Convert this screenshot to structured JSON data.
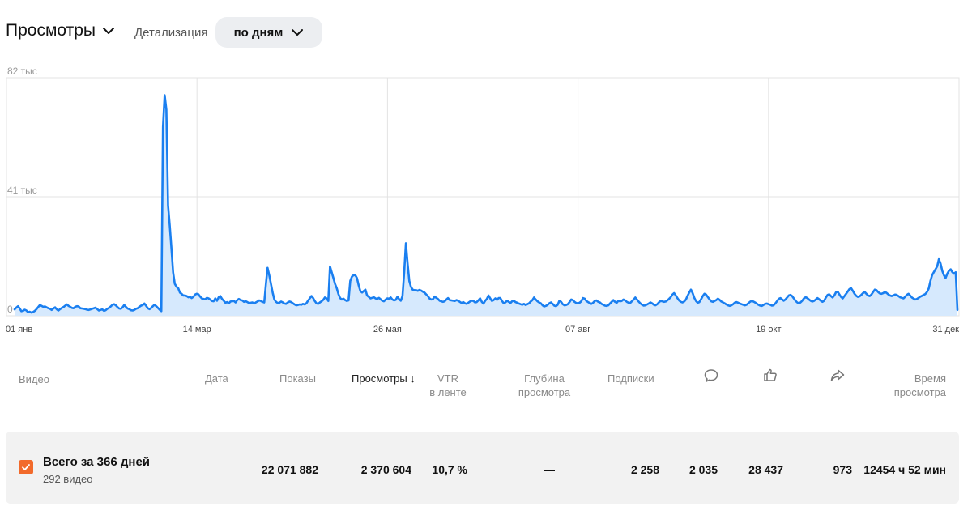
{
  "toolbar": {
    "metric_label": "Просмотры",
    "detail_label": "Детализация",
    "detail_value": "по дням"
  },
  "chart_data": {
    "type": "area",
    "title": "",
    "xlabel": "",
    "ylabel": "",
    "ylim": [
      0,
      82000
    ],
    "y_ticks": [
      "0",
      "41 тыс",
      "82 тыс"
    ],
    "x_ticks": [
      "01 янв",
      "14 мар",
      "26 мая",
      "07 авг",
      "19 окт",
      "31 дек"
    ],
    "grid": true,
    "color": "#1a7ff0",
    "fill": "#d6e9fd",
    "series": [
      {
        "values": [
          2200,
          2800,
          3300,
          2600,
          1600,
          1700,
          2100,
          1800,
          1200,
          1400,
          1100,
          1300,
          1700,
          2300,
          3000,
          3700,
          3400,
          3100,
          3200,
          2900,
          2600,
          2400,
          2000,
          2500,
          2900,
          2200,
          1800,
          2300,
          2700,
          3000,
          3500,
          3900,
          3400,
          3100,
          2700,
          2600,
          3100,
          3300,
          3200,
          2600,
          2500,
          2400,
          2300,
          2100,
          2000,
          2200,
          2400,
          2600,
          2800,
          2300,
          1800,
          2000,
          2200,
          1700,
          1900,
          2400,
          2700,
          3200,
          3800,
          4000,
          3600,
          3000,
          2500,
          2400,
          2900,
          3700,
          3100,
          2500,
          2300,
          1900,
          1800,
          2000,
          2400,
          2600,
          3100,
          3500,
          3700,
          4200,
          3400,
          2600,
          2300,
          2700,
          3300,
          3800,
          3300,
          2700,
          2100,
          1600,
          65000,
          76000,
          71000,
          38000,
          31000,
          23000,
          15000,
          11000,
          10000,
          9500,
          8000,
          7600,
          7000,
          7000,
          6800,
          6400,
          6600,
          6100,
          6500,
          7300,
          7600,
          7400,
          6600,
          6000,
          5800,
          5700,
          6200,
          6000,
          5600,
          5100,
          5000,
          6000,
          5200,
          6400,
          6800,
          5800,
          5200,
          4500,
          4700,
          4300,
          4900,
          5000,
          5100,
          4600,
          5400,
          5800,
          5400,
          5300,
          4800,
          5000,
          4700,
          4400,
          4500,
          4600,
          4200,
          4600,
          4900,
          5300,
          5100,
          4800,
          4600,
          11000,
          16500,
          14000,
          11000,
          8000,
          5600,
          4800,
          4400,
          4500,
          4900,
          4600,
          4200,
          4100,
          4600,
          4900,
          4700,
          4300,
          3900,
          3600,
          3700,
          3900,
          3800,
          4100,
          3900,
          4300,
          5200,
          6000,
          6800,
          6100,
          5100,
          4300,
          4100,
          4600,
          5000,
          5500,
          6300,
          6000,
          5100,
          17000,
          15000,
          13000,
          11000,
          9500,
          7500,
          6100,
          5600,
          5900,
          5400,
          5100,
          5300,
          12000,
          13500,
          14000,
          14000,
          13000,
          10500,
          8500,
          8000,
          8500,
          9000,
          7000,
          6500,
          6000,
          6200,
          6400,
          6000,
          5800,
          6200,
          5700,
          5200,
          5000,
          5600,
          6000,
          5900,
          6300,
          5600,
          5300,
          5500,
          6600,
          5700,
          5200,
          6800,
          15000,
          25000,
          18000,
          12000,
          10000,
          9000,
          8800,
          8800,
          8600,
          8900,
          8700,
          8300,
          8000,
          7400,
          6800,
          6000,
          5600,
          5700,
          6600,
          6200,
          5800,
          5200,
          5000,
          4800,
          5000,
          5600,
          6100,
          5400,
          5300,
          5200,
          5100,
          5400,
          5200,
          4800,
          4400,
          4700,
          4300,
          4100,
          4500,
          4900,
          5200,
          5100,
          4600,
          4700,
          5300,
          6000,
          4800,
          4200,
          5200,
          5800,
          7000,
          6000,
          5100,
          5400,
          6000,
          5500,
          6100,
          6100,
          5100,
          4300,
          4600,
          5200,
          4800,
          4400,
          5000,
          5200,
          4700,
          4500,
          4200,
          4000,
          3800,
          4100,
          3700,
          4000,
          4300,
          4900,
          5400,
          6300,
          5600,
          5000,
          4600,
          4300,
          3600,
          3200,
          3400,
          3700,
          4300,
          4600,
          4100,
          3500,
          3300,
          3800,
          5200,
          4800,
          4000,
          3600,
          3700,
          4000,
          4700,
          5600,
          5400,
          4800,
          4400,
          4300,
          4500,
          5000,
          6100,
          5900,
          5100,
          4700,
          4400,
          4100,
          4500,
          5100,
          5300,
          4800,
          4600,
          4100,
          3800,
          3500,
          3400,
          3600,
          4200,
          4800,
          5400,
          4800,
          4500,
          5200,
          5000,
          5100,
          5600,
          5300,
          4800,
          4500,
          4400,
          5000,
          5600,
          6300,
          5600,
          4900,
          4300,
          3800,
          3500,
          3600,
          3900,
          4200,
          4600,
          4300,
          3800,
          3600,
          4000,
          4600,
          5100,
          5000,
          4800,
          4900,
          5300,
          5800,
          6400,
          7300,
          7800,
          7000,
          6100,
          5300,
          4800,
          4600,
          4900,
          5600,
          6900,
          8000,
          9000,
          7800,
          6200,
          5100,
          4500,
          4700,
          5700,
          6800,
          7600,
          7300,
          6500,
          5700,
          5000,
          4800,
          5100,
          5400,
          5900,
          5500,
          4900,
          4600,
          4300,
          3900,
          3600,
          3400,
          3600,
          4000,
          4500,
          4700,
          4500,
          4200,
          4000,
          3800,
          3600,
          3800,
          4300,
          4800,
          5100,
          4900,
          4600,
          4200,
          3800,
          3500,
          3400,
          3700,
          4100,
          4200,
          4000,
          3800,
          3500,
          3600,
          4200,
          5000,
          5800,
          6100,
          5700,
          5200,
          5600,
          6300,
          7000,
          7200,
          6800,
          6000,
          5200,
          4600,
          4300,
          4600,
          5200,
          6000,
          6400,
          6100,
          5600,
          5200,
          4900,
          5100,
          5600,
          6100,
          5700,
          5200,
          4800,
          5200,
          6300,
          7200,
          7400,
          6800,
          6300,
          7000,
          8100,
          8300,
          7400,
          6500,
          6000,
          6800,
          7600,
          8400,
          9200,
          9500,
          8600,
          7600,
          6900,
          6500,
          6700,
          7200,
          7800,
          8200,
          7600,
          7000,
          6800,
          7300,
          8200,
          9000,
          8800,
          8200,
          7700,
          7600,
          7800,
          8200,
          7900,
          7400,
          7000,
          6800,
          7000,
          7300,
          7200,
          6800,
          6400,
          6200,
          6000,
          6500,
          7200,
          7600,
          7000,
          6300,
          5900,
          5600,
          5800,
          6200,
          6600,
          6900,
          7200,
          7500,
          8200,
          9400,
          12000,
          14000,
          15000,
          16000,
          17000,
          19500,
          18000,
          15500,
          14000,
          13000,
          14500,
          15500,
          16000,
          15000,
          14500,
          15000,
          2000
        ]
      }
    ]
  },
  "table": {
    "headers": {
      "video": "Видео",
      "date": "Дата",
      "impressions": "Показы",
      "views": "Просмотры",
      "sort_arrow": "↓",
      "vtr_line1": "VTR",
      "vtr_line2": "в ленте",
      "depth_line1": "Глубина",
      "depth_line2": "просмотра",
      "subscriptions": "Подписки",
      "watch_time_line1": "Время",
      "watch_time_line2": "просмотра"
    },
    "header_icons": [
      "comment-icon",
      "like-icon",
      "share-icon"
    ],
    "total": {
      "title": "Всего за 366 дней",
      "subtitle": "292 видео",
      "impressions": "22 071 882",
      "views": "2 370 604",
      "vtr": "10,7 %",
      "depth": "—",
      "subscriptions": "2 258",
      "comments": "2 035",
      "likes": "28 437",
      "shares": "973",
      "watch_time": "12454 ч 52 мин"
    }
  },
  "colors": {
    "accent": "#1a7ff0",
    "checkbox": "#f26a2b",
    "row_bg": "#f2f2f2",
    "dropdown_bg": "#eceef1"
  }
}
